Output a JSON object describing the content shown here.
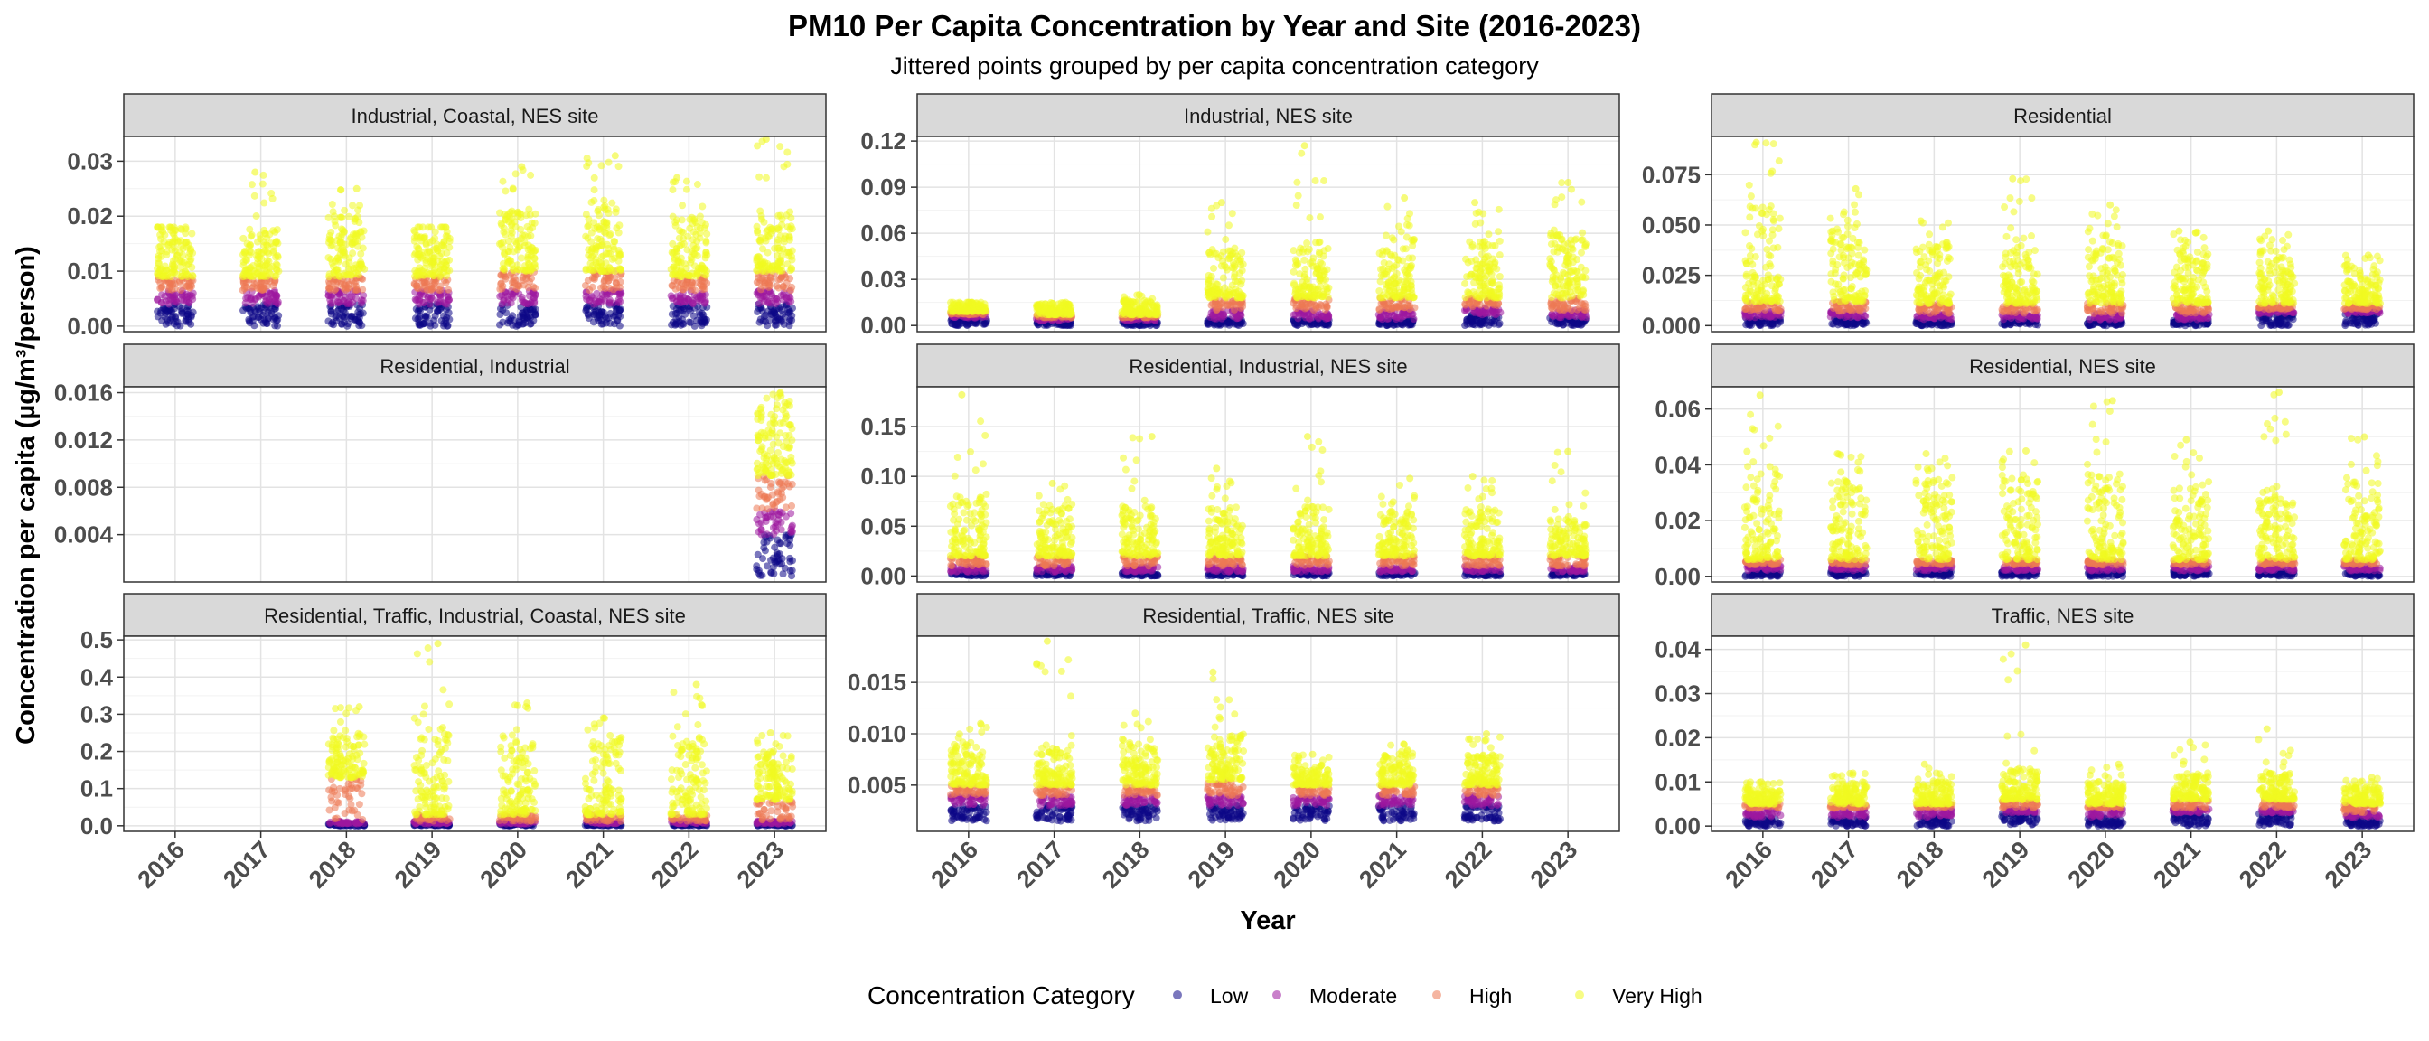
{
  "title": "PM10 Per Capita Concentration by Year and Site (2016-2023)",
  "subtitle": "Jittered points grouped by per capita concentration category",
  "chart_data": {
    "type": "scatter",
    "title": "PM10 Per Capita Concentration by Year and Site (2016-2023)",
    "subtitle": "Jittered points grouped by per capita concentration category",
    "xlabel": "Year",
    "ylabel": "Concentration per capita (µg/m³/person)",
    "x": [
      "2016",
      "2017",
      "2018",
      "2019",
      "2020",
      "2021",
      "2022",
      "2023"
    ],
    "grid": true,
    "legend": {
      "title": "Concentration Category",
      "placement": "bottom",
      "entries": [
        {
          "name": "Low",
          "color": "#0d0887"
        },
        {
          "name": "Moderate",
          "color": "#9c179e"
        },
        {
          "name": "High",
          "color": "#ed7953"
        },
        {
          "name": "Very High",
          "color": "#f0f921"
        }
      ]
    },
    "facets": [
      {
        "name": "Industrial, Coastal, NES site",
        "ylim": [
          -0.001,
          0.0345
        ],
        "yticks": [
          0.0,
          0.01,
          0.02,
          0.03
        ],
        "ytick_labels": [
          "0.00",
          "0.01",
          "0.02",
          "0.03"
        ],
        "years": [
          {
            "year": "2016",
            "low": 0.004,
            "moderate": 0.0065,
            "high": 0.009,
            "very_high_top": 0.018,
            "max": 0.018
          },
          {
            "year": "2017",
            "low": 0.004,
            "moderate": 0.0065,
            "high": 0.009,
            "very_high_top": 0.018,
            "max": 0.028
          },
          {
            "year": "2018",
            "low": 0.004,
            "moderate": 0.0065,
            "high": 0.009,
            "very_high_top": 0.02,
            "max": 0.025
          },
          {
            "year": "2019",
            "low": 0.004,
            "moderate": 0.0065,
            "high": 0.009,
            "very_high_top": 0.018,
            "max": 0.018
          },
          {
            "year": "2020",
            "low": 0.004,
            "moderate": 0.0065,
            "high": 0.01,
            "very_high_top": 0.021,
            "max": 0.029
          },
          {
            "year": "2021",
            "low": 0.004,
            "moderate": 0.0065,
            "high": 0.01,
            "very_high_top": 0.023,
            "max": 0.031
          },
          {
            "year": "2022",
            "low": 0.004,
            "moderate": 0.0065,
            "high": 0.009,
            "very_high_top": 0.02,
            "max": 0.027
          },
          {
            "year": "2023",
            "low": 0.004,
            "moderate": 0.0065,
            "high": 0.01,
            "very_high_top": 0.021,
            "max": 0.034
          }
        ]
      },
      {
        "name": "Industrial, NES site",
        "ylim": [
          -0.004,
          0.123
        ],
        "yticks": [
          0.0,
          0.03,
          0.06,
          0.09,
          0.12
        ],
        "ytick_labels": [
          "0.00",
          "0.03",
          "0.06",
          "0.09",
          "0.12"
        ],
        "years": [
          {
            "year": "2016",
            "low": 0.005,
            "moderate": 0.007,
            "high": 0.009,
            "very_high_top": 0.015,
            "max": 0.015
          },
          {
            "year": "2017",
            "low": 0.003,
            "moderate": 0.005,
            "high": 0.007,
            "very_high_top": 0.014,
            "max": 0.015
          },
          {
            "year": "2018",
            "low": 0.003,
            "moderate": 0.005,
            "high": 0.007,
            "very_high_top": 0.016,
            "max": 0.02
          },
          {
            "year": "2019",
            "low": 0.004,
            "moderate": 0.01,
            "high": 0.018,
            "very_high_top": 0.05,
            "max": 0.08
          },
          {
            "year": "2020",
            "low": 0.004,
            "moderate": 0.01,
            "high": 0.018,
            "very_high_top": 0.055,
            "max": 0.117
          },
          {
            "year": "2021",
            "low": 0.004,
            "moderate": 0.01,
            "high": 0.018,
            "very_high_top": 0.058,
            "max": 0.083
          },
          {
            "year": "2022",
            "low": 0.007,
            "moderate": 0.012,
            "high": 0.018,
            "very_high_top": 0.055,
            "max": 0.08
          },
          {
            "year": "2023",
            "low": 0.005,
            "moderate": 0.01,
            "high": 0.018,
            "very_high_top": 0.06,
            "max": 0.093
          }
        ]
      },
      {
        "name": "Residential",
        "ylim": [
          -0.003,
          0.094
        ],
        "yticks": [
          0.0,
          0.025,
          0.05,
          0.075
        ],
        "ytick_labels": [
          "0.000",
          "0.025",
          "0.050",
          "0.075"
        ],
        "years": [
          {
            "year": "2016",
            "low": 0.004,
            "moderate": 0.007,
            "high": 0.012,
            "very_high_top": 0.06,
            "max": 0.091
          },
          {
            "year": "2017",
            "low": 0.004,
            "moderate": 0.007,
            "high": 0.012,
            "very_high_top": 0.05,
            "max": 0.068
          },
          {
            "year": "2018",
            "low": 0.003,
            "moderate": 0.006,
            "high": 0.011,
            "very_high_top": 0.04,
            "max": 0.052
          },
          {
            "year": "2019",
            "low": 0.003,
            "moderate": 0.006,
            "high": 0.011,
            "very_high_top": 0.045,
            "max": 0.073
          },
          {
            "year": "2020",
            "low": 0.003,
            "moderate": 0.006,
            "high": 0.011,
            "very_high_top": 0.045,
            "max": 0.06
          },
          {
            "year": "2021",
            "low": 0.003,
            "moderate": 0.006,
            "high": 0.011,
            "very_high_top": 0.04,
            "max": 0.047
          },
          {
            "year": "2022",
            "low": 0.006,
            "moderate": 0.008,
            "high": 0.011,
            "very_high_top": 0.038,
            "max": 0.047
          },
          {
            "year": "2023",
            "low": 0.006,
            "moderate": 0.008,
            "high": 0.011,
            "very_high_top": 0.03,
            "max": 0.035
          }
        ]
      },
      {
        "name": "Residential, Industrial",
        "ylim": [
          0.0,
          0.0165
        ],
        "yticks": [
          0.004,
          0.008,
          0.012,
          0.016
        ],
        "ytick_labels": [
          "0.004",
          "0.008",
          "0.012",
          "0.016"
        ],
        "years": [
          {
            "year": "2023",
            "low": 0.004,
            "moderate": 0.006,
            "high": 0.009,
            "very_high_top": 0.015,
            "max": 0.016,
            "min": 0.0005
          }
        ]
      },
      {
        "name": "Residential, Industrial, NES site",
        "ylim": [
          -0.006,
          0.19
        ],
        "yticks": [
          0.0,
          0.05,
          0.1,
          0.15
        ],
        "ytick_labels": [
          "0.00",
          "0.05",
          "0.10",
          "0.15"
        ],
        "years": [
          {
            "year": "2016",
            "low": 0.004,
            "moderate": 0.01,
            "high": 0.02,
            "very_high_top": 0.08,
            "max": 0.182
          },
          {
            "year": "2017",
            "low": 0.004,
            "moderate": 0.01,
            "high": 0.02,
            "very_high_top": 0.07,
            "max": 0.093
          },
          {
            "year": "2018",
            "low": 0.004,
            "moderate": 0.01,
            "high": 0.02,
            "very_high_top": 0.07,
            "max": 0.14
          },
          {
            "year": "2019",
            "low": 0.004,
            "moderate": 0.01,
            "high": 0.02,
            "very_high_top": 0.07,
            "max": 0.108
          },
          {
            "year": "2020",
            "low": 0.004,
            "moderate": 0.01,
            "high": 0.02,
            "very_high_top": 0.07,
            "max": 0.14
          },
          {
            "year": "2021",
            "low": 0.004,
            "moderate": 0.01,
            "high": 0.02,
            "very_high_top": 0.065,
            "max": 0.098
          },
          {
            "year": "2022",
            "low": 0.004,
            "moderate": 0.01,
            "high": 0.02,
            "very_high_top": 0.07,
            "max": 0.1
          },
          {
            "year": "2023",
            "low": 0.004,
            "moderate": 0.01,
            "high": 0.02,
            "very_high_top": 0.06,
            "max": 0.125
          }
        ]
      },
      {
        "name": "Residential, NES site",
        "ylim": [
          -0.002,
          0.068
        ],
        "yticks": [
          0.0,
          0.02,
          0.04,
          0.06
        ],
        "ytick_labels": [
          "0.00",
          "0.02",
          "0.04",
          "0.06"
        ],
        "years": [
          {
            "year": "2016",
            "low": 0.002,
            "moderate": 0.004,
            "high": 0.006,
            "very_high_top": 0.04,
            "max": 0.065
          },
          {
            "year": "2017",
            "low": 0.002,
            "moderate": 0.004,
            "high": 0.006,
            "very_high_top": 0.035,
            "max": 0.044
          },
          {
            "year": "2018",
            "low": 0.002,
            "moderate": 0.004,
            "high": 0.006,
            "very_high_top": 0.035,
            "max": 0.044
          },
          {
            "year": "2019",
            "low": 0.002,
            "moderate": 0.004,
            "high": 0.006,
            "very_high_top": 0.035,
            "max": 0.045
          },
          {
            "year": "2020",
            "low": 0.002,
            "moderate": 0.004,
            "high": 0.006,
            "very_high_top": 0.037,
            "max": 0.063
          },
          {
            "year": "2021",
            "low": 0.002,
            "moderate": 0.004,
            "high": 0.006,
            "very_high_top": 0.033,
            "max": 0.049
          },
          {
            "year": "2022",
            "low": 0.002,
            "moderate": 0.004,
            "high": 0.006,
            "very_high_top": 0.033,
            "max": 0.066
          },
          {
            "year": "2023",
            "low": 0.002,
            "moderate": 0.004,
            "high": 0.006,
            "very_high_top": 0.035,
            "max": 0.05
          }
        ]
      },
      {
        "name": "Residential, Traffic, Industrial, Coastal, NES site",
        "ylim": [
          -0.015,
          0.51
        ],
        "yticks": [
          0.0,
          0.1,
          0.2,
          0.3,
          0.4,
          0.5
        ],
        "ytick_labels": [
          "0.0",
          "0.1",
          "0.2",
          "0.3",
          "0.4",
          "0.5"
        ],
        "years": [
          {
            "year": "2018",
            "low": 0.005,
            "moderate": 0.012,
            "high": 0.13,
            "very_high_top": 0.25,
            "max": 0.32
          },
          {
            "year": "2019",
            "low": 0.005,
            "moderate": 0.012,
            "high": 0.03,
            "very_high_top": 0.28,
            "max": 0.49
          },
          {
            "year": "2020",
            "low": 0.005,
            "moderate": 0.012,
            "high": 0.03,
            "very_high_top": 0.23,
            "max": 0.33
          },
          {
            "year": "2021",
            "low": 0.005,
            "moderate": 0.012,
            "high": 0.03,
            "very_high_top": 0.23,
            "max": 0.29
          },
          {
            "year": "2022",
            "low": 0.005,
            "moderate": 0.012,
            "high": 0.03,
            "very_high_top": 0.25,
            "max": 0.38
          },
          {
            "year": "2023",
            "low": 0.005,
            "moderate": 0.012,
            "high": 0.07,
            "very_high_top": 0.2,
            "max": 0.25
          }
        ]
      },
      {
        "name": "Residential, Traffic, NES site",
        "ylim": [
          0.0005,
          0.0195
        ],
        "yticks": [
          0.005,
          0.01,
          0.015
        ],
        "ytick_labels": [
          "0.005",
          "0.010",
          "0.015"
        ],
        "years": [
          {
            "year": "2016",
            "low": 0.003,
            "moderate": 0.004,
            "high": 0.005,
            "very_high_top": 0.009,
            "max": 0.011,
            "min": 0.0015
          },
          {
            "year": "2017",
            "low": 0.003,
            "moderate": 0.004,
            "high": 0.005,
            "very_high_top": 0.009,
            "max": 0.019,
            "min": 0.0015
          },
          {
            "year": "2018",
            "low": 0.003,
            "moderate": 0.004,
            "high": 0.005,
            "very_high_top": 0.009,
            "max": 0.012,
            "min": 0.0015
          },
          {
            "year": "2019",
            "low": 0.003,
            "moderate": 0.004,
            "high": 0.0055,
            "very_high_top": 0.01,
            "max": 0.016,
            "min": 0.0015
          },
          {
            "year": "2020",
            "low": 0.003,
            "moderate": 0.004,
            "high": 0.005,
            "very_high_top": 0.007,
            "max": 0.008,
            "min": 0.0015
          },
          {
            "year": "2021",
            "low": 0.003,
            "moderate": 0.004,
            "high": 0.005,
            "very_high_top": 0.008,
            "max": 0.009,
            "min": 0.0015
          },
          {
            "year": "2022",
            "low": 0.003,
            "moderate": 0.004,
            "high": 0.005,
            "very_high_top": 0.008,
            "max": 0.01,
            "min": 0.0015
          }
        ]
      },
      {
        "name": "Traffic, NES site",
        "ylim": [
          -0.0012,
          0.043
        ],
        "yticks": [
          0.0,
          0.01,
          0.02,
          0.03,
          0.04
        ],
        "ytick_labels": [
          "0.00",
          "0.01",
          "0.02",
          "0.03",
          "0.04"
        ],
        "years": [
          {
            "year": "2016",
            "low": 0.002,
            "moderate": 0.004,
            "high": 0.005,
            "very_high_top": 0.009,
            "max": 0.01
          },
          {
            "year": "2017",
            "low": 0.002,
            "moderate": 0.004,
            "high": 0.005,
            "very_high_top": 0.01,
            "max": 0.012
          },
          {
            "year": "2018",
            "low": 0.002,
            "moderate": 0.004,
            "high": 0.005,
            "very_high_top": 0.01,
            "max": 0.014
          },
          {
            "year": "2019",
            "low": 0.003,
            "moderate": 0.004,
            "high": 0.006,
            "very_high_top": 0.013,
            "max": 0.041
          },
          {
            "year": "2020",
            "low": 0.002,
            "moderate": 0.004,
            "high": 0.005,
            "very_high_top": 0.01,
            "max": 0.014
          },
          {
            "year": "2021",
            "low": 0.003,
            "moderate": 0.004,
            "high": 0.006,
            "very_high_top": 0.012,
            "max": 0.019
          },
          {
            "year": "2022",
            "low": 0.003,
            "moderate": 0.004,
            "high": 0.006,
            "very_high_top": 0.012,
            "max": 0.022
          },
          {
            "year": "2023",
            "low": 0.002,
            "moderate": 0.003,
            "high": 0.005,
            "very_high_top": 0.009,
            "max": 0.011
          }
        ]
      }
    ]
  }
}
